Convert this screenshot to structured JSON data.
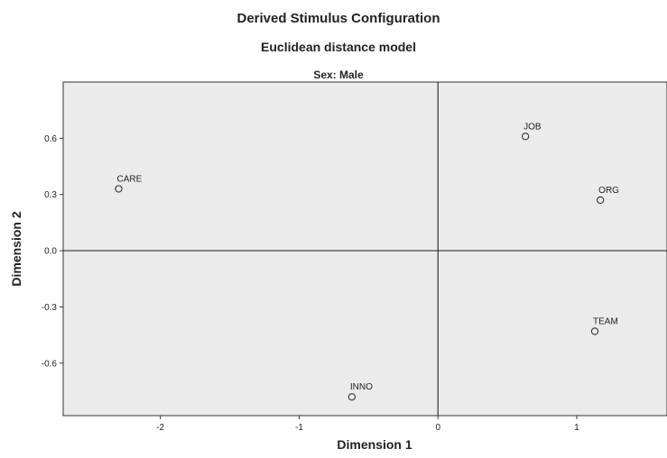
{
  "chart_data": {
    "type": "scatter",
    "title": "Derived Stimulus Configuration",
    "subtitle": "Euclidean distance model",
    "panel_title": "Sex: Male",
    "xlabel": "Dimension 1",
    "ylabel": "Dimension 2",
    "xlim": [
      -2.7,
      1.65
    ],
    "ylim": [
      -0.88,
      0.9
    ],
    "xticks": [
      -2,
      -1,
      0,
      1
    ],
    "xtick_labels": [
      "-2",
      "-1",
      "0",
      "1"
    ],
    "yticks": [
      -0.6,
      -0.3,
      0.0,
      0.3,
      0.6
    ],
    "ytick_labels": [
      "-0.6",
      "-0.3",
      "0.0",
      "0.3",
      "0.6"
    ],
    "grid": false,
    "reference_lines": {
      "x": 0,
      "y": 0
    },
    "marker": "hollow-circle",
    "colors": {
      "plot_background": "#ebebeb",
      "axis": "#333333",
      "marker_stroke": "#333333",
      "text": "#222222"
    },
    "points": [
      {
        "label": "JOB",
        "x": 0.63,
        "y": 0.61
      },
      {
        "label": "ORG",
        "x": 1.17,
        "y": 0.27
      },
      {
        "label": "CARE",
        "x": -2.3,
        "y": 0.33
      },
      {
        "label": "TEAM",
        "x": 1.13,
        "y": -0.43
      },
      {
        "label": "INNO",
        "x": -0.62,
        "y": -0.78
      }
    ]
  }
}
